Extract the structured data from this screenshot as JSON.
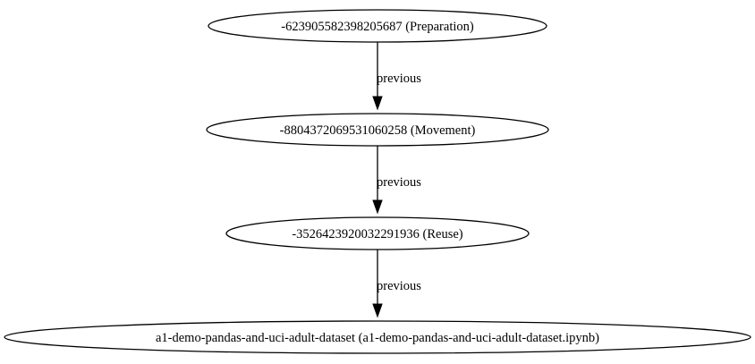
{
  "diagram": {
    "nodes": [
      {
        "id": "n1",
        "label": "-623905582398205687 (Preparation)"
      },
      {
        "id": "n2",
        "label": "-8804372069531060258 (Movement)"
      },
      {
        "id": "n3",
        "label": "-3526423920032291936 (Reuse)"
      },
      {
        "id": "n4",
        "label": "a1-demo-pandas-and-uci-adult-dataset (a1-demo-pandas-and-uci-adult-dataset.ipynb)"
      }
    ],
    "edges": [
      {
        "from": "n1",
        "to": "n2",
        "label": "previous"
      },
      {
        "from": "n2",
        "to": "n3",
        "label": "previous"
      },
      {
        "from": "n3",
        "to": "n4",
        "label": "previous"
      }
    ]
  }
}
